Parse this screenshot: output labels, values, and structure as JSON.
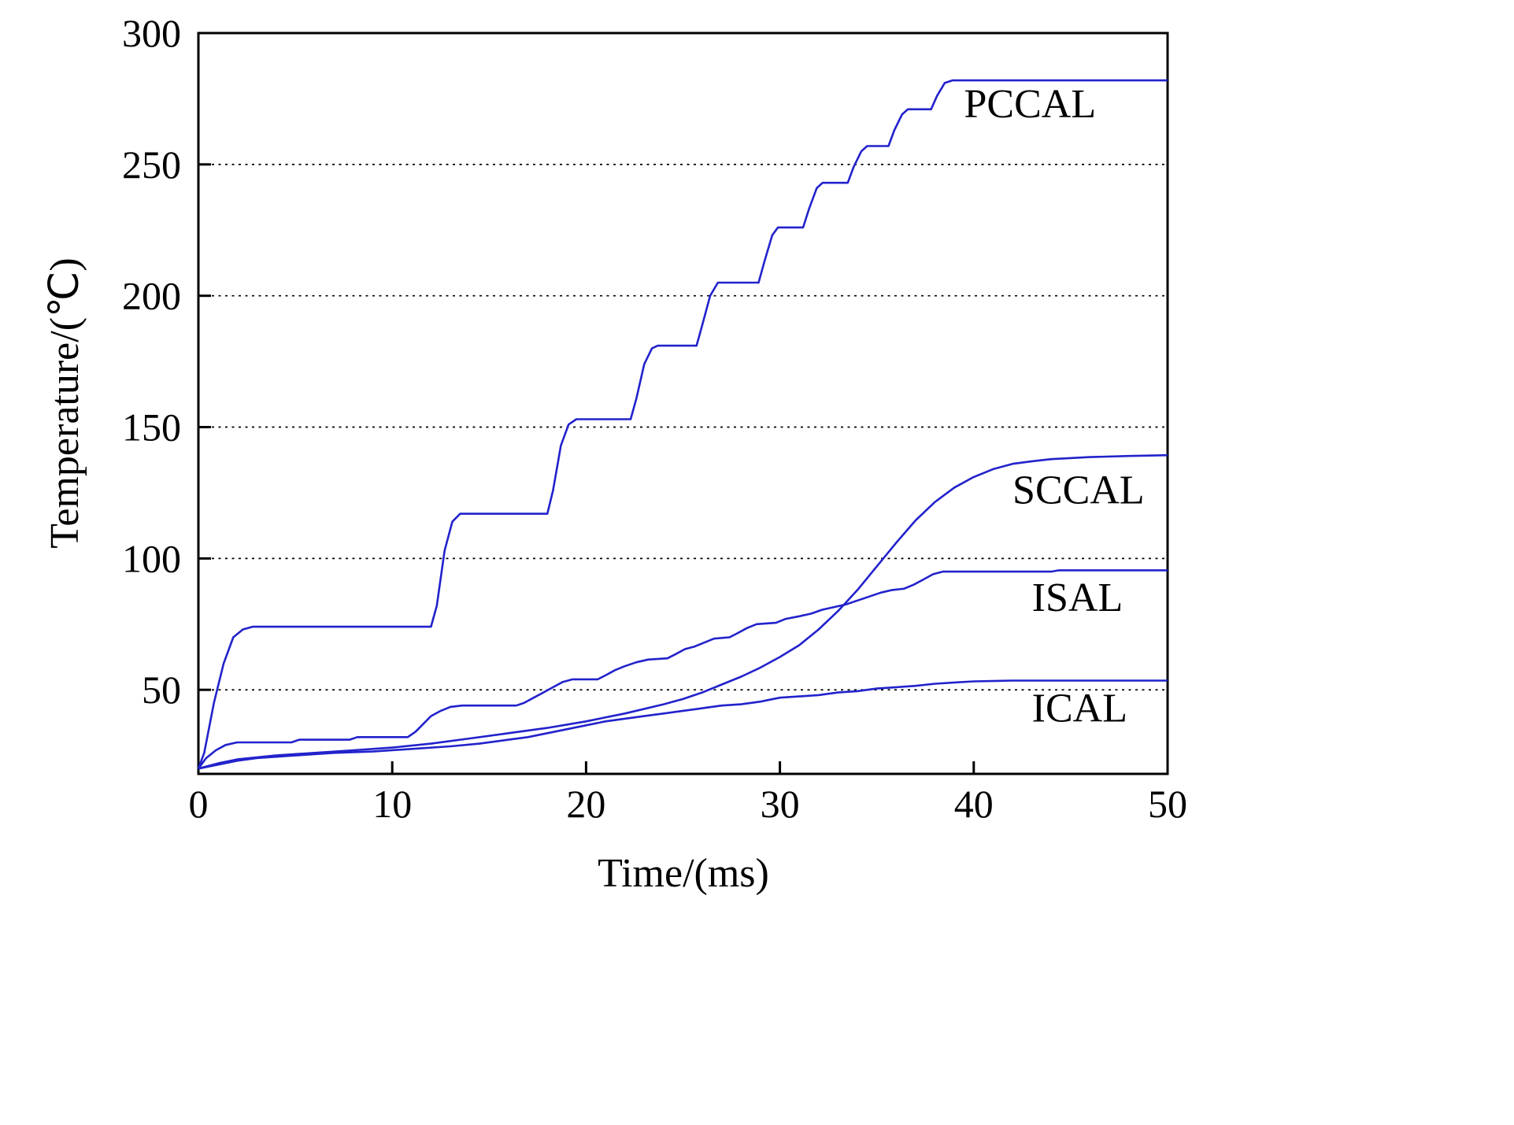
{
  "figure": {
    "background": "#ffffff",
    "line_color": "#2222cc",
    "axis_color": "#000000"
  },
  "chart_data": {
    "type": "line",
    "title": "",
    "xlabel": "Time/(ms)",
    "ylabel": "Temperature/(℃)",
    "xlim": [
      0,
      50
    ],
    "ylim": [
      18,
      300
    ],
    "xticks": [
      0,
      10,
      20,
      30,
      40,
      50
    ],
    "yticks": [
      50,
      100,
      150,
      200,
      250,
      300
    ],
    "gridlines_y": [
      50,
      100,
      150,
      200,
      250
    ],
    "grid_style": "dotted",
    "legend_position": "inline-labels",
    "series": [
      {
        "name": "PCCAL",
        "label_anchor": [
          39.5,
          268
        ],
        "points": [
          [
            0,
            20
          ],
          [
            0.3,
            26
          ],
          [
            0.8,
            45
          ],
          [
            1.3,
            60
          ],
          [
            1.8,
            70
          ],
          [
            2.3,
            73
          ],
          [
            2.8,
            74
          ],
          [
            12,
            74
          ],
          [
            12.3,
            82
          ],
          [
            12.7,
            103
          ],
          [
            13.1,
            114
          ],
          [
            13.5,
            117
          ],
          [
            18,
            117
          ],
          [
            18.3,
            126
          ],
          [
            18.7,
            143
          ],
          [
            19.1,
            151
          ],
          [
            19.5,
            153
          ],
          [
            22.3,
            153
          ],
          [
            22.6,
            161
          ],
          [
            23,
            174
          ],
          [
            23.4,
            180
          ],
          [
            23.7,
            181
          ],
          [
            25.7,
            181
          ],
          [
            26,
            189
          ],
          [
            26.4,
            200
          ],
          [
            26.8,
            205
          ],
          [
            28.9,
            205
          ],
          [
            29.2,
            213
          ],
          [
            29.6,
            223
          ],
          [
            29.9,
            226
          ],
          [
            31.2,
            226
          ],
          [
            31.5,
            233
          ],
          [
            31.9,
            241
          ],
          [
            32.2,
            243
          ],
          [
            33.5,
            243
          ],
          [
            33.8,
            249
          ],
          [
            34.2,
            255
          ],
          [
            34.5,
            257
          ],
          [
            35.6,
            257
          ],
          [
            35.9,
            263
          ],
          [
            36.3,
            269
          ],
          [
            36.6,
            271
          ],
          [
            37.8,
            271
          ],
          [
            38.1,
            276
          ],
          [
            38.5,
            281
          ],
          [
            38.9,
            282
          ],
          [
            50,
            282
          ]
        ]
      },
      {
        "name": "SCCAL",
        "label_anchor": [
          42,
          121
        ],
        "points": [
          [
            0,
            20
          ],
          [
            1,
            22
          ],
          [
            2,
            23.5
          ],
          [
            4,
            25
          ],
          [
            6,
            26
          ],
          [
            8,
            27
          ],
          [
            10,
            28
          ],
          [
            12,
            29.5
          ],
          [
            14,
            31.5
          ],
          [
            16,
            33.5
          ],
          [
            18,
            35.5
          ],
          [
            20,
            38
          ],
          [
            22,
            41
          ],
          [
            24,
            44.5
          ],
          [
            25,
            46.5
          ],
          [
            26,
            49
          ],
          [
            27,
            52
          ],
          [
            28,
            55
          ],
          [
            29,
            58.5
          ],
          [
            30,
            62.5
          ],
          [
            31,
            67
          ],
          [
            32,
            73
          ],
          [
            33,
            80
          ],
          [
            34,
            88
          ],
          [
            35,
            97
          ],
          [
            36,
            106
          ],
          [
            37,
            114.5
          ],
          [
            38,
            121.5
          ],
          [
            39,
            127
          ],
          [
            40,
            131
          ],
          [
            41,
            134
          ],
          [
            42,
            136
          ],
          [
            43,
            137
          ],
          [
            44,
            137.8
          ],
          [
            46,
            138.6
          ],
          [
            48,
            139
          ],
          [
            50,
            139.3
          ]
        ]
      },
      {
        "name": "ISAL",
        "label_anchor": [
          43,
          80
        ],
        "points": [
          [
            0,
            20
          ],
          [
            0.4,
            24
          ],
          [
            0.9,
            27
          ],
          [
            1.4,
            29
          ],
          [
            2,
            30
          ],
          [
            4.8,
            30
          ],
          [
            5.2,
            31
          ],
          [
            7.8,
            31
          ],
          [
            8.2,
            32
          ],
          [
            10.8,
            32
          ],
          [
            11.2,
            34
          ],
          [
            11.6,
            37
          ],
          [
            12,
            40
          ],
          [
            12.5,
            42
          ],
          [
            13,
            43.5
          ],
          [
            13.6,
            44
          ],
          [
            16.4,
            44
          ],
          [
            16.8,
            45
          ],
          [
            17.3,
            47
          ],
          [
            17.8,
            49
          ],
          [
            18.3,
            51
          ],
          [
            18.8,
            53
          ],
          [
            19.3,
            54
          ],
          [
            20.6,
            54
          ],
          [
            21,
            55.5
          ],
          [
            21.5,
            57.5
          ],
          [
            22,
            59
          ],
          [
            22.6,
            60.5
          ],
          [
            23.2,
            61.5
          ],
          [
            24.2,
            62
          ],
          [
            24.6,
            63.5
          ],
          [
            25.1,
            65.5
          ],
          [
            25.6,
            66.5
          ],
          [
            26.1,
            68
          ],
          [
            26.6,
            69.5
          ],
          [
            27.4,
            70
          ],
          [
            27.8,
            71.5
          ],
          [
            28.3,
            73.5
          ],
          [
            28.8,
            75
          ],
          [
            29.8,
            75.5
          ],
          [
            30.3,
            77
          ],
          [
            31,
            78
          ],
          [
            31.6,
            79
          ],
          [
            32.2,
            80.5
          ],
          [
            32.8,
            81.5
          ],
          [
            33.4,
            82.5
          ],
          [
            34,
            84
          ],
          [
            34.6,
            85.5
          ],
          [
            35.2,
            87
          ],
          [
            35.8,
            88
          ],
          [
            36.4,
            88.5
          ],
          [
            36.9,
            90
          ],
          [
            37.4,
            92
          ],
          [
            37.9,
            94
          ],
          [
            38.4,
            95
          ],
          [
            44,
            95
          ],
          [
            44.4,
            95.5
          ],
          [
            50,
            95.5
          ]
        ]
      },
      {
        "name": "ICAL",
        "label_anchor": [
          43,
          38
        ],
        "points": [
          [
            0,
            20
          ],
          [
            1,
            21.5
          ],
          [
            2,
            23
          ],
          [
            3,
            24
          ],
          [
            5,
            25
          ],
          [
            7,
            26
          ],
          [
            9,
            26.5
          ],
          [
            11,
            27.5
          ],
          [
            13,
            28.5
          ],
          [
            14.5,
            29.5
          ],
          [
            16,
            31
          ],
          [
            17,
            32
          ],
          [
            18,
            33.5
          ],
          [
            19,
            35
          ],
          [
            20,
            36.5
          ],
          [
            21,
            38
          ],
          [
            22,
            39
          ],
          [
            23,
            40
          ],
          [
            24,
            41
          ],
          [
            25,
            42
          ],
          [
            26,
            43
          ],
          [
            27,
            44
          ],
          [
            28,
            44.5
          ],
          [
            29,
            45.5
          ],
          [
            30,
            47
          ],
          [
            31,
            47.5
          ],
          [
            32,
            48
          ],
          [
            33,
            49
          ],
          [
            34,
            49.5
          ],
          [
            35,
            50.5
          ],
          [
            36,
            51
          ],
          [
            37,
            51.5
          ],
          [
            38,
            52.3
          ],
          [
            39,
            52.8
          ],
          [
            40,
            53.2
          ],
          [
            42,
            53.5
          ],
          [
            50,
            53.5
          ]
        ]
      }
    ]
  }
}
